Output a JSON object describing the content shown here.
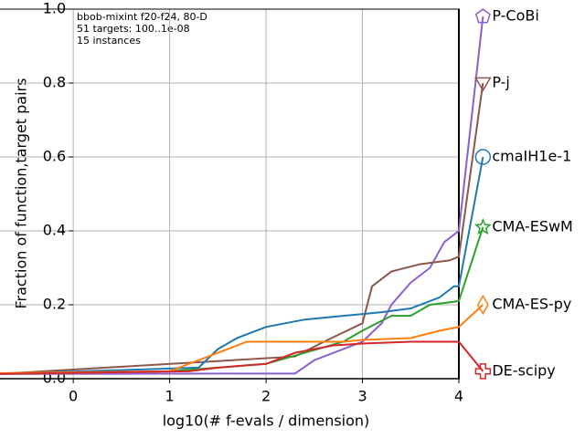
{
  "chart_data": {
    "type": "line",
    "annotations": [
      "bbob-mixint f20-f24, 80-D",
      "51 targets: 100..1e-08",
      "15 instances"
    ],
    "x_label": "log10(# f-evals / dimension)",
    "y_label": "Fraction of function,target pairs",
    "xlim": [
      -0.76,
      4
    ],
    "ylim": [
      0,
      1
    ],
    "xticks": [
      0,
      1,
      2,
      3,
      4
    ],
    "yticks": [
      {
        "value": 0,
        "label": "0.0"
      },
      {
        "value": 0.2,
        "label": "0.2"
      },
      {
        "value": 0.4,
        "label": "0.4"
      },
      {
        "value": 0.6,
        "label": "0.6"
      },
      {
        "value": 0.8,
        "label": "0.8"
      },
      {
        "value": 1,
        "label": "1.0"
      }
    ],
    "grid": true,
    "series": [
      {
        "name": "P-CoBi",
        "color": "#8c5fd0",
        "marker": "pentagon",
        "x": [
          -0.76,
          2.3,
          2.5,
          3.0,
          3.2,
          3.3,
          3.5,
          3.7,
          3.85,
          4.0,
          4.25
        ],
        "values": [
          0.013,
          0.014,
          0.05,
          0.1,
          0.15,
          0.2,
          0.26,
          0.3,
          0.37,
          0.4,
          0.98
        ]
      },
      {
        "name": "P-j",
        "color": "#8c564b",
        "marker": "triangle-down",
        "x": [
          -0.76,
          2.3,
          2.6,
          3.0,
          3.1,
          3.3,
          3.6,
          3.9,
          4.0,
          4.25
        ],
        "values": [
          0.013,
          0.06,
          0.1,
          0.15,
          0.25,
          0.29,
          0.31,
          0.32,
          0.33,
          0.8
        ]
      },
      {
        "name": "cmaIH1e-1",
        "color": "#1f77b4",
        "marker": "circle",
        "x": [
          -0.76,
          1.3,
          1.5,
          1.7,
          2.0,
          2.4,
          2.8,
          3.2,
          3.5,
          3.8,
          3.95,
          4.0,
          4.25
        ],
        "values": [
          0.013,
          0.03,
          0.08,
          0.11,
          0.14,
          0.16,
          0.17,
          0.18,
          0.19,
          0.22,
          0.25,
          0.25,
          0.6
        ]
      },
      {
        "name": "CMA-ESwM",
        "color": "#2ca02c",
        "marker": "star",
        "x": [
          -0.76,
          1.0,
          1.5,
          2.0,
          2.4,
          2.8,
          3.0,
          3.3,
          3.5,
          3.7,
          4.0,
          4.25
        ],
        "values": [
          0.013,
          0.02,
          0.03,
          0.04,
          0.07,
          0.1,
          0.13,
          0.17,
          0.17,
          0.2,
          0.21,
          0.41
        ]
      },
      {
        "name": "CMA-ES-py",
        "color": "#ff7f0e",
        "marker": "diamond",
        "x": [
          -0.76,
          1.0,
          1.6,
          1.8,
          2.8,
          3.0,
          3.5,
          3.8,
          4.0,
          4.25
        ],
        "values": [
          0.015,
          0.02,
          0.08,
          0.1,
          0.1,
          0.105,
          0.11,
          0.13,
          0.14,
          0.2
        ]
      },
      {
        "name": "DE-scipy",
        "color": "#d62728",
        "marker": "cross",
        "x": [
          -0.76,
          1.2,
          1.5,
          2.0,
          2.3,
          2.5,
          2.7,
          3.0,
          3.5,
          4.0,
          4.25
        ],
        "values": [
          0.013,
          0.02,
          0.03,
          0.04,
          0.07,
          0.08,
          0.09,
          0.095,
          0.1,
          0.1,
          0.02
        ]
      }
    ]
  }
}
